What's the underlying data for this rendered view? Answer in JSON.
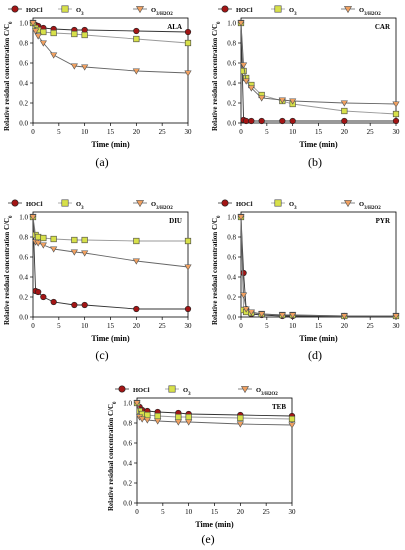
{
  "legend": {
    "series": [
      {
        "key": "hocl",
        "label_main": "HOCl",
        "label_sub": "",
        "marker": "circle",
        "color": "#a31515",
        "line": "#333333"
      },
      {
        "key": "o3",
        "label_main": "O",
        "label_sub": "3",
        "marker": "square",
        "color": "#d7e04a",
        "line": "#999999"
      },
      {
        "key": "o3h2o2",
        "label_main": "O",
        "label_sub": "3/H2O2",
        "marker": "triangle-down",
        "color": "#f0a060",
        "line": "#666666"
      }
    ]
  },
  "axis": {
    "xlabel": "Time (min)",
    "ylabel_main": "Relative residual concentration C/C",
    "ylabel_sub": "0",
    "xlim": [
      0,
      30
    ],
    "ylim": [
      0,
      1.05
    ],
    "xticks": [
      0,
      5,
      10,
      15,
      20,
      25,
      30
    ],
    "yticks": [
      0.0,
      0.2,
      0.4,
      0.6,
      0.8,
      1.0
    ],
    "ytick_labels": [
      "0.0",
      "0.2",
      "0.4",
      "0.6",
      "0.8",
      "1.0"
    ]
  },
  "chart_data": [
    {
      "type": "line",
      "panel_label": "ALA",
      "caption": "(a)",
      "x": [
        0,
        0.5,
        1,
        2,
        4,
        8,
        10,
        20,
        30
      ],
      "series": [
        {
          "name": "HOCl",
          "values": [
            1.0,
            0.98,
            0.97,
            0.95,
            0.94,
            0.93,
            0.93,
            0.92,
            0.91
          ]
        },
        {
          "name": "O3",
          "values": [
            1.0,
            0.95,
            0.93,
            0.91,
            0.9,
            0.89,
            0.88,
            0.84,
            0.8
          ]
        },
        {
          "name": "O3/H2O2",
          "values": [
            1.0,
            0.92,
            0.87,
            0.8,
            0.68,
            0.57,
            0.56,
            0.52,
            0.5
          ]
        }
      ]
    },
    {
      "type": "line",
      "panel_label": "CAR",
      "caption": "(b)",
      "x": [
        0,
        0.5,
        1,
        2,
        4,
        8,
        10,
        20,
        30
      ],
      "series": [
        {
          "name": "HOCl",
          "values": [
            1.0,
            0.03,
            0.02,
            0.02,
            0.02,
            0.02,
            0.02,
            0.02,
            0.02
          ]
        },
        {
          "name": "O3",
          "values": [
            1.0,
            0.52,
            0.45,
            0.38,
            0.28,
            0.22,
            0.19,
            0.12,
            0.09
          ]
        },
        {
          "name": "O3/H2O2",
          "values": [
            1.0,
            0.58,
            0.42,
            0.35,
            0.25,
            0.23,
            0.22,
            0.2,
            0.19
          ]
        }
      ]
    },
    {
      "type": "line",
      "panel_label": "DIU",
      "caption": "(c)",
      "x": [
        0,
        0.5,
        1,
        2,
        4,
        8,
        10,
        20,
        30
      ],
      "series": [
        {
          "name": "HOCl",
          "values": [
            1.0,
            0.26,
            0.25,
            0.2,
            0.15,
            0.12,
            0.12,
            0.08,
            0.08
          ]
        },
        {
          "name": "O3",
          "values": [
            1.0,
            0.82,
            0.8,
            0.79,
            0.78,
            0.77,
            0.77,
            0.76,
            0.76
          ]
        },
        {
          "name": "O3/H2O2",
          "values": [
            1.0,
            0.75,
            0.74,
            0.72,
            0.68,
            0.65,
            0.64,
            0.56,
            0.5
          ]
        }
      ]
    },
    {
      "type": "line",
      "panel_label": "PYR",
      "caption": "(d)",
      "x": [
        0,
        0.5,
        1,
        2,
        4,
        8,
        10,
        20,
        30
      ],
      "series": [
        {
          "name": "HOCl",
          "values": [
            1.0,
            0.44,
            0.08,
            0.03,
            0.02,
            0.01,
            0.01,
            0.01,
            0.01
          ]
        },
        {
          "name": "O3",
          "values": [
            1.0,
            0.07,
            0.05,
            0.04,
            0.03,
            0.02,
            0.02,
            0.01,
            0.01
          ]
        },
        {
          "name": "O3/H2O2",
          "values": [
            1.0,
            0.22,
            0.08,
            0.05,
            0.03,
            0.02,
            0.02,
            0.01,
            0.01
          ]
        }
      ]
    },
    {
      "type": "line",
      "panel_label": "TEB",
      "caption": "(e)",
      "x": [
        0,
        0.5,
        1,
        2,
        4,
        8,
        10,
        20,
        30
      ],
      "series": [
        {
          "name": "HOCl",
          "values": [
            1.0,
            0.96,
            0.93,
            0.92,
            0.91,
            0.9,
            0.89,
            0.88,
            0.87
          ]
        },
        {
          "name": "O3",
          "values": [
            1.0,
            0.92,
            0.89,
            0.88,
            0.87,
            0.86,
            0.86,
            0.85,
            0.84
          ]
        },
        {
          "name": "O3/H2O2",
          "values": [
            1.0,
            0.86,
            0.84,
            0.83,
            0.82,
            0.81,
            0.81,
            0.79,
            0.78
          ]
        }
      ]
    }
  ]
}
